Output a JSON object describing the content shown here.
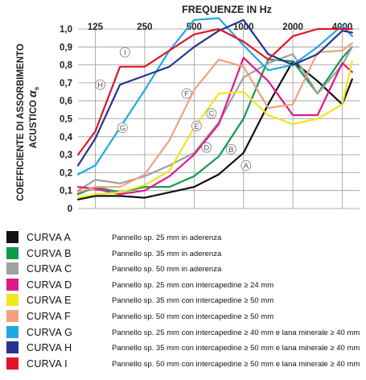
{
  "chart_data": {
    "type": "line",
    "title": "FREQUENZE IN Hz",
    "ylabel_lines": [
      "COEFFICIENTE DI ASSORBIMENTO",
      "ACUSTICO"
    ],
    "ylabel_symbol": "α",
    "ylabel_subscript": "s",
    "x_tick_labels": [
      "125",
      "250",
      "500",
      "1000",
      "2000",
      "4000"
    ],
    "y_tick_labels": [
      "0",
      "0,1",
      "0,2",
      "0,3",
      "0,4",
      "0,5",
      "0,6",
      "0,7",
      "0,8",
      "0,9",
      "1,0"
    ],
    "ylim": [
      0,
      1.0
    ],
    "x_scale": "log2-octave-index",
    "xlim": [
      -0.35,
      5.35
    ],
    "grid": true,
    "series": [
      {
        "key": "A",
        "name": "CURVA A",
        "color": "#111111",
        "points": [
          [
            -0.35,
            0.05
          ],
          [
            0,
            0.07
          ],
          [
            0.5,
            0.07
          ],
          [
            1,
            0.06
          ],
          [
            1.5,
            0.09
          ],
          [
            2,
            0.12
          ],
          [
            2.5,
            0.19
          ],
          [
            3,
            0.31
          ],
          [
            3.5,
            0.58
          ],
          [
            4,
            0.82
          ],
          [
            4.5,
            0.71
          ],
          [
            5,
            0.58
          ],
          [
            5.2,
            0.72
          ]
        ]
      },
      {
        "key": "B",
        "name": "CURVA B",
        "color": "#0f9a4c",
        "points": [
          [
            -0.35,
            0.08
          ],
          [
            0,
            0.12
          ],
          [
            0.5,
            0.09
          ],
          [
            1,
            0.12
          ],
          [
            1.5,
            0.12
          ],
          [
            2,
            0.18
          ],
          [
            2.5,
            0.29
          ],
          [
            3,
            0.5
          ],
          [
            3.5,
            0.83
          ],
          [
            4,
            0.82
          ],
          [
            4.5,
            0.64
          ],
          [
            5,
            0.84
          ],
          [
            5.2,
            0.9
          ]
        ]
      },
      {
        "key": "C",
        "name": "CURVA C",
        "color": "#a0a0a0",
        "points": [
          [
            -0.35,
            0.1
          ],
          [
            0,
            0.16
          ],
          [
            0.5,
            0.14
          ],
          [
            1,
            0.18
          ],
          [
            1.5,
            0.24
          ],
          [
            2,
            0.31
          ],
          [
            2.5,
            0.48
          ],
          [
            3,
            0.73
          ],
          [
            3.5,
            0.81
          ],
          [
            4,
            0.86
          ],
          [
            4.5,
            0.64
          ],
          [
            5,
            0.8
          ],
          [
            5.2,
            0.9
          ]
        ]
      },
      {
        "key": "D",
        "name": "CURVA D",
        "color": "#e0178a",
        "points": [
          [
            -0.35,
            0.12
          ],
          [
            0,
            0.11
          ],
          [
            0.5,
            0.08
          ],
          [
            1,
            0.1
          ],
          [
            1.5,
            0.18
          ],
          [
            2,
            0.3
          ],
          [
            2.5,
            0.47
          ],
          [
            3,
            0.84
          ],
          [
            3.5,
            0.71
          ],
          [
            4,
            0.52
          ],
          [
            4.5,
            0.52
          ],
          [
            5,
            0.81
          ],
          [
            5.2,
            0.76
          ]
        ]
      },
      {
        "key": "E",
        "name": "CURVA E",
        "color": "#f1e51c",
        "points": [
          [
            -0.35,
            0.06
          ],
          [
            0,
            0.08
          ],
          [
            0.5,
            0.09
          ],
          [
            1,
            0.13
          ],
          [
            1.5,
            0.21
          ],
          [
            2,
            0.45
          ],
          [
            2.5,
            0.64
          ],
          [
            3,
            0.65
          ],
          [
            3.5,
            0.52
          ],
          [
            4,
            0.47
          ],
          [
            4.5,
            0.5
          ],
          [
            5,
            0.58
          ],
          [
            5.2,
            0.82
          ]
        ]
      },
      {
        "key": "F",
        "name": "CURVA F",
        "color": "#f2a080",
        "points": [
          [
            -0.35,
            0.09
          ],
          [
            0,
            0.12
          ],
          [
            0.5,
            0.12
          ],
          [
            1,
            0.19
          ],
          [
            1.5,
            0.38
          ],
          [
            2,
            0.66
          ],
          [
            2.5,
            0.83
          ],
          [
            3,
            0.79
          ],
          [
            3.5,
            0.56
          ],
          [
            4,
            0.58
          ],
          [
            4.5,
            0.87
          ],
          [
            5,
            0.88
          ],
          [
            5.2,
            0.92
          ]
        ]
      },
      {
        "key": "G",
        "name": "CURVA G",
        "color": "#22a8e0",
        "points": [
          [
            -0.35,
            0.19
          ],
          [
            0,
            0.24
          ],
          [
            0.5,
            0.45
          ],
          [
            1,
            0.66
          ],
          [
            1.5,
            0.88
          ],
          [
            2,
            1.05
          ],
          [
            2.5,
            1.06
          ],
          [
            3,
            0.91
          ],
          [
            3.5,
            0.77
          ],
          [
            4,
            0.8
          ],
          [
            4.5,
            0.9
          ],
          [
            5,
            1.02
          ],
          [
            5.2,
            0.96
          ]
        ]
      },
      {
        "key": "H",
        "name": "CURVA H",
        "color": "#27338e",
        "points": [
          [
            -0.35,
            0.24
          ],
          [
            0,
            0.39
          ],
          [
            0.5,
            0.69
          ],
          [
            1,
            0.74
          ],
          [
            1.5,
            0.79
          ],
          [
            2,
            0.9
          ],
          [
            2.5,
            0.99
          ],
          [
            3,
            1.05
          ],
          [
            3.5,
            0.86
          ],
          [
            4,
            0.8
          ],
          [
            4.5,
            0.86
          ],
          [
            5,
            0.99
          ],
          [
            5.2,
            0.98
          ]
        ]
      },
      {
        "key": "I",
        "name": "CURVA I",
        "color": "#e0152a",
        "points": [
          [
            -0.35,
            0.3
          ],
          [
            0,
            0.43
          ],
          [
            0.5,
            0.79
          ],
          [
            1,
            0.79
          ],
          [
            1.5,
            0.88
          ],
          [
            2,
            0.97
          ],
          [
            2.5,
            1.0
          ],
          [
            3,
            0.93
          ],
          [
            3.5,
            0.83
          ],
          [
            4,
            0.96
          ],
          [
            4.5,
            1.0
          ],
          [
            5,
            1.0
          ],
          [
            5.2,
            1.0
          ]
        ]
      }
    ],
    "curve_labels": [
      {
        "key": "A",
        "x": 3.05,
        "y": 0.24
      },
      {
        "key": "B",
        "x": 2.75,
        "y": 0.33
      },
      {
        "key": "C",
        "x": 2.35,
        "y": 0.53
      },
      {
        "key": "D",
        "x": 2.25,
        "y": 0.34
      },
      {
        "key": "E",
        "x": 2.05,
        "y": 0.46
      },
      {
        "key": "F",
        "x": 1.85,
        "y": 0.64
      },
      {
        "key": "G",
        "x": 0.55,
        "y": 0.45
      },
      {
        "key": "H",
        "x": 0.1,
        "y": 0.69
      },
      {
        "key": "I",
        "x": 0.6,
        "y": 0.87
      }
    ]
  },
  "legend": {
    "items": [
      {
        "key": "A",
        "name": "CURVA A",
        "color": "#111111",
        "description": "Pannello sp. 25 mm in aderenza"
      },
      {
        "key": "B",
        "name": "CURVA B",
        "color": "#0f9a4c",
        "description": "Pannello sp. 35 mm in aderenza"
      },
      {
        "key": "C",
        "name": "CURVA C",
        "color": "#a0a0a0",
        "description": "Pannello sp. 50 mm in aderenza"
      },
      {
        "key": "D",
        "name": "CURVA D",
        "color": "#e0178a",
        "description": "Pannello sp. 25 mm con intercapedine ≥ 24 mm"
      },
      {
        "key": "E",
        "name": "CURVA E",
        "color": "#f1e51c",
        "description": "Pannello sp. 35 mm con intercapedine ≥ 50 mm"
      },
      {
        "key": "F",
        "name": "CURVA F",
        "color": "#f2a080",
        "description": "Pannello sp. 50 mm con intercapedine ≥ 50 mm"
      },
      {
        "key": "G",
        "name": "CURVA G",
        "color": "#22a8e0",
        "description": "Pannello sp. 25 mm con intercapedine ≥ 40 mm e lana minerale ≥ 40 mm"
      },
      {
        "key": "H",
        "name": "CURVA H",
        "color": "#27338e",
        "description": "Pannello sp. 35 mm con intercapedine ≥ 50 mm e lana minerale ≥ 40 mm"
      },
      {
        "key": "I",
        "name": "CURVA I",
        "color": "#e0152a",
        "description": "Pannello sp. 50 mm con intercapedine ≥ 50 mm e lana minerale ≥ 40 mm"
      }
    ]
  }
}
